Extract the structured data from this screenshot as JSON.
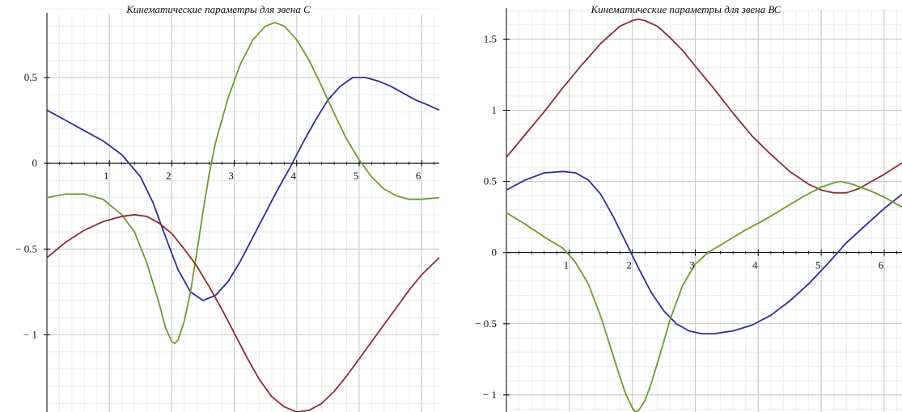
{
  "chart_data": [
    {
      "type": "line",
      "title": "Кинематические параметры для звена С",
      "xlabel": "",
      "ylabel": "",
      "xlim": [
        0,
        6.283
      ],
      "ylim": [
        -1.45,
        0.82
      ],
      "grid": true,
      "x_ticks": [
        1,
        2,
        3,
        4,
        5,
        6
      ],
      "x_tick_labels": [
        "1",
        "2",
        "3",
        "4",
        "5",
        "6"
      ],
      "y_ticks": [
        0.5,
        0,
        -0.5,
        -1
      ],
      "y_tick_labels": [
        "0.5",
        "0",
        "− 0.5",
        "− 1"
      ],
      "series": [
        {
          "color": "#2b2f9a",
          "x": [
            0,
            0.3,
            0.6,
            0.9,
            1.2,
            1.5,
            1.7,
            1.9,
            2.1,
            2.3,
            2.5,
            2.7,
            2.9,
            3.1,
            3.3,
            3.5,
            3.7,
            3.9,
            4.1,
            4.3,
            4.5,
            4.7,
            4.9,
            5.1,
            5.3,
            5.5,
            5.7,
            5.9,
            6.1,
            6.283
          ],
          "values": [
            0.31,
            0.25,
            0.19,
            0.13,
            0.05,
            -0.08,
            -0.23,
            -0.43,
            -0.62,
            -0.75,
            -0.8,
            -0.77,
            -0.69,
            -0.57,
            -0.43,
            -0.29,
            -0.15,
            -0.02,
            0.12,
            0.25,
            0.37,
            0.45,
            0.5,
            0.5,
            0.48,
            0.45,
            0.41,
            0.37,
            0.34,
            0.31
          ]
        },
        {
          "color": "#6e9b2a",
          "x": [
            0,
            0.3,
            0.6,
            0.9,
            1.2,
            1.4,
            1.6,
            1.8,
            1.9,
            2.0,
            2.05,
            2.1,
            2.2,
            2.3,
            2.4,
            2.5,
            2.6,
            2.7,
            2.9,
            3.1,
            3.3,
            3.5,
            3.65,
            3.8,
            4.0,
            4.2,
            4.4,
            4.6,
            4.8,
            5.0,
            5.2,
            5.4,
            5.6,
            5.8,
            6.0,
            6.283
          ],
          "values": [
            -0.2,
            -0.18,
            -0.18,
            -0.21,
            -0.3,
            -0.4,
            -0.58,
            -0.82,
            -0.96,
            -1.04,
            -1.05,
            -1.03,
            -0.92,
            -0.75,
            -0.52,
            -0.28,
            -0.06,
            0.12,
            0.38,
            0.58,
            0.72,
            0.8,
            0.82,
            0.8,
            0.72,
            0.6,
            0.45,
            0.29,
            0.14,
            0.02,
            -0.08,
            -0.15,
            -0.19,
            -0.21,
            -0.21,
            -0.2
          ]
        },
        {
          "color": "#8e2b33",
          "x": [
            0,
            0.3,
            0.6,
            0.9,
            1.2,
            1.4,
            1.6,
            1.8,
            2.0,
            2.2,
            2.4,
            2.6,
            2.8,
            3.0,
            3.2,
            3.4,
            3.6,
            3.8,
            4.0,
            4.2,
            4.4,
            4.6,
            4.8,
            5.0,
            5.2,
            5.4,
            5.6,
            5.8,
            6.0,
            6.283
          ],
          "values": [
            -0.55,
            -0.46,
            -0.39,
            -0.34,
            -0.31,
            -0.3,
            -0.31,
            -0.35,
            -0.41,
            -0.5,
            -0.6,
            -0.72,
            -0.85,
            -0.99,
            -1.13,
            -1.26,
            -1.36,
            -1.42,
            -1.45,
            -1.44,
            -1.4,
            -1.33,
            -1.24,
            -1.14,
            -1.04,
            -0.94,
            -0.84,
            -0.74,
            -0.65,
            -0.55
          ]
        }
      ]
    },
    {
      "type": "line",
      "title": "Кинематические параметры для звена ВС",
      "xlabel": "",
      "ylabel": "",
      "xlim": [
        0,
        6.283
      ],
      "ylim": [
        -1.12,
        1.65
      ],
      "grid": true,
      "x_ticks": [
        1,
        2,
        3,
        4,
        5,
        6
      ],
      "x_tick_labels": [
        "1",
        "2",
        "3",
        "4",
        "5",
        "6"
      ],
      "y_ticks": [
        1.5,
        1,
        0.5,
        0,
        -0.5,
        -1
      ],
      "y_tick_labels": [
        "1.5",
        "1",
        "0.5",
        "0",
        "− 0.5",
        "− 1"
      ],
      "series": [
        {
          "color": "#8e2b33",
          "x": [
            0,
            0.3,
            0.6,
            0.9,
            1.2,
            1.5,
            1.8,
            2.0,
            2.1,
            2.2,
            2.4,
            2.6,
            2.8,
            3.0,
            3.3,
            3.6,
            3.9,
            4.2,
            4.5,
            4.8,
            5.0,
            5.2,
            5.4,
            5.6,
            5.8,
            6.0,
            6.283
          ],
          "values": [
            0.67,
            0.83,
            0.99,
            1.16,
            1.32,
            1.47,
            1.59,
            1.63,
            1.64,
            1.63,
            1.59,
            1.51,
            1.42,
            1.31,
            1.15,
            0.98,
            0.82,
            0.69,
            0.57,
            0.48,
            0.44,
            0.42,
            0.42,
            0.45,
            0.5,
            0.55,
            0.63
          ]
        },
        {
          "color": "#2b2f9a",
          "x": [
            0,
            0.3,
            0.6,
            0.9,
            1.1,
            1.3,
            1.5,
            1.7,
            1.9,
            2.1,
            2.3,
            2.5,
            2.7,
            2.9,
            3.1,
            3.3,
            3.6,
            3.9,
            4.2,
            4.5,
            4.8,
            5.1,
            5.4,
            5.7,
            6.0,
            6.283
          ],
          "values": [
            0.44,
            0.51,
            0.56,
            0.57,
            0.56,
            0.51,
            0.41,
            0.25,
            0.07,
            -0.11,
            -0.28,
            -0.41,
            -0.5,
            -0.55,
            -0.57,
            -0.57,
            -0.55,
            -0.51,
            -0.44,
            -0.34,
            -0.22,
            -0.08,
            0.07,
            0.19,
            0.31,
            0.41
          ]
        },
        {
          "color": "#6e9b2a",
          "x": [
            0,
            0.3,
            0.6,
            0.9,
            1.1,
            1.3,
            1.5,
            1.7,
            1.8,
            1.9,
            2.0,
            2.05,
            2.1,
            2.2,
            2.3,
            2.45,
            2.6,
            2.8,
            3.0,
            3.2,
            3.5,
            3.8,
            4.1,
            4.4,
            4.7,
            5.0,
            5.2,
            5.3,
            5.5,
            5.8,
            6.0,
            6.283
          ],
          "values": [
            0.28,
            0.2,
            0.11,
            0.03,
            -0.07,
            -0.22,
            -0.45,
            -0.73,
            -0.87,
            -1.0,
            -1.09,
            -1.12,
            -1.11,
            -1.04,
            -0.92,
            -0.7,
            -0.47,
            -0.23,
            -0.08,
            0.0,
            0.08,
            0.16,
            0.23,
            0.31,
            0.39,
            0.46,
            0.49,
            0.5,
            0.48,
            0.43,
            0.39,
            0.32
          ]
        }
      ]
    }
  ]
}
